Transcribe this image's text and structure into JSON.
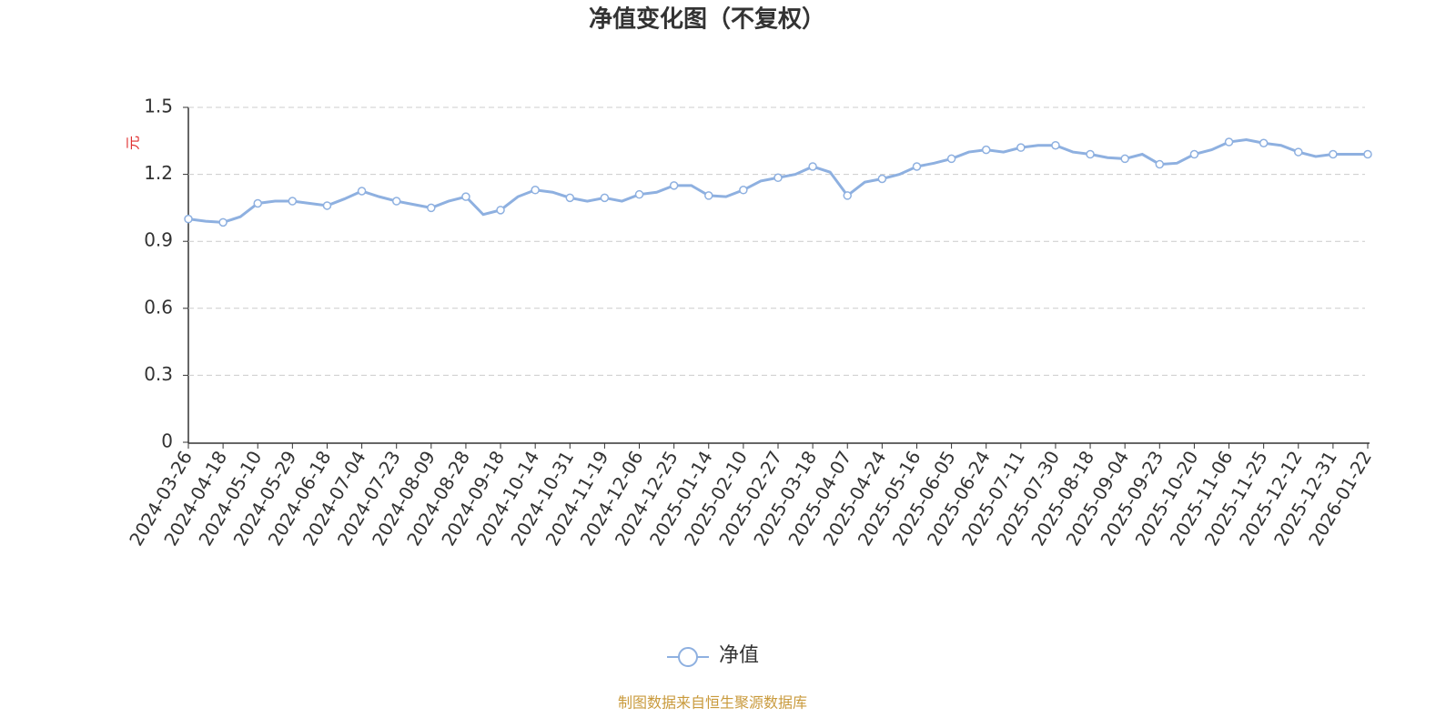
{
  "chart_data": {
    "type": "line",
    "title": "净值变化图（不复权）",
    "y_label": "元",
    "source": "制图数据来自恒生聚源数据库",
    "categories": [
      "2024-03-26",
      null,
      "2024-04-18",
      null,
      "2024-05-10",
      null,
      "2024-05-29",
      null,
      "2024-06-18",
      null,
      "2024-07-04",
      null,
      "2024-07-23",
      null,
      "2024-08-09",
      null,
      "2024-08-28",
      null,
      "2024-09-18",
      null,
      "2024-10-14",
      null,
      "2024-10-31",
      null,
      "2024-11-19",
      null,
      "2024-12-06",
      null,
      "2024-12-25",
      null,
      "2025-01-14",
      null,
      "2025-02-10",
      null,
      "2025-02-27",
      null,
      "2025-03-18",
      null,
      "2025-04-07",
      null,
      "2025-04-24",
      null,
      "2025-05-16",
      null,
      "2025-06-05",
      null,
      "2025-06-24",
      null,
      "2025-07-11",
      null,
      "2025-07-30",
      null,
      "2025-08-18",
      null,
      "2025-09-04",
      null,
      "2025-09-23",
      null,
      "2025-10-20",
      null,
      "2025-11-06",
      null,
      "2025-11-25",
      null,
      "2025-12-12",
      null,
      "2025-12-31",
      null,
      "2026-01-22"
    ],
    "series": [
      {
        "name": "净值",
        "color": "#8eb0e0",
        "values": [
          1.0,
          0.99,
          0.985,
          1.01,
          1.07,
          1.08,
          1.08,
          1.07,
          1.06,
          1.09,
          1.125,
          1.1,
          1.08,
          1.065,
          1.05,
          1.08,
          1.1,
          1.02,
          1.04,
          1.1,
          1.13,
          1.12,
          1.095,
          1.08,
          1.095,
          1.08,
          1.11,
          1.12,
          1.15,
          1.15,
          1.105,
          1.1,
          1.13,
          1.17,
          1.185,
          1.2,
          1.235,
          1.21,
          1.105,
          1.165,
          1.18,
          1.2,
          1.235,
          1.25,
          1.27,
          1.3,
          1.31,
          1.3,
          1.32,
          1.33,
          1.33,
          1.3,
          1.29,
          1.275,
          1.27,
          1.29,
          1.245,
          1.25,
          1.29,
          1.31,
          1.345,
          1.355,
          1.34,
          1.33,
          1.3,
          1.28,
          1.29,
          1.29,
          1.29
        ]
      }
    ],
    "ylim": [
      0,
      1.5
    ],
    "yticks": [
      0,
      0.3,
      0.6,
      0.9,
      1.2,
      1.5
    ],
    "grid": true
  }
}
